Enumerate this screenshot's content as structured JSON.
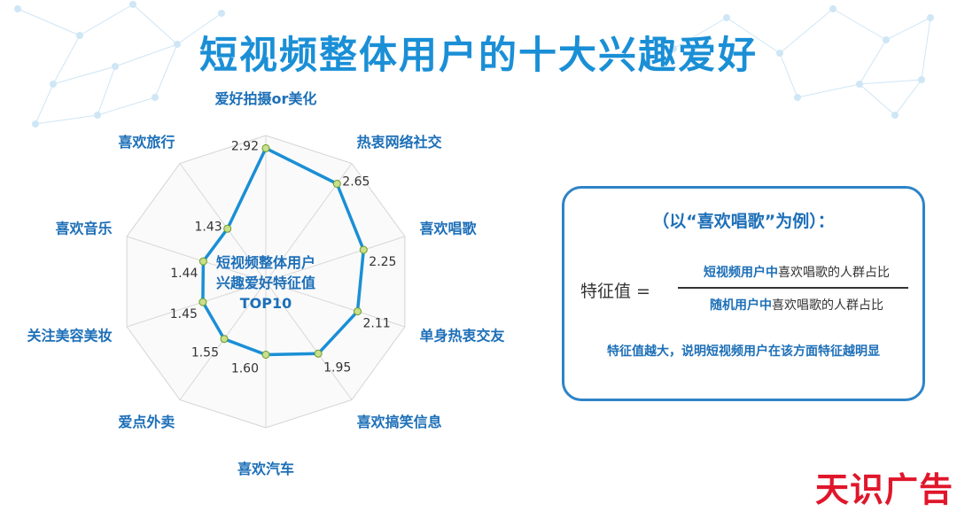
{
  "title": "短视频整体用户的十大兴趣爱好",
  "chart_data": {
    "type": "radar",
    "center_label": [
      "短视频整体用户",
      "兴趣爱好特征值",
      "TOP10"
    ],
    "categories": [
      "爱好拍摄or美化",
      "热衷网络社交",
      "喜欢唱歌",
      "单身热衷交友",
      "喜欢搞笑信息",
      "喜欢汽车",
      "爱点外卖",
      "关注美容美妆",
      "喜欢音乐",
      "喜欢旅行"
    ],
    "values": [
      2.92,
      2.65,
      2.25,
      2.11,
      1.95,
      1.6,
      1.55,
      1.45,
      1.44,
      1.43
    ],
    "value_labels": [
      "2.92",
      "2.65",
      "2.25",
      "2.11",
      "1.95",
      "1.60",
      "1.55",
      "1.45",
      "1.44",
      "1.43"
    ],
    "rmax": 3.2,
    "line_color": "#1a8fd6",
    "point_color": "#c9df8a"
  },
  "info_box": {
    "heading": "（以“喜欢唱歌”为例）：",
    "formula_left": "特征值 =",
    "numerator_highlight": "短视频用户中",
    "numerator_rest": "喜欢唱歌的人群占比",
    "denominator_highlight": "随机用户中",
    "denominator_rest": "喜欢唱歌的人群占比",
    "note": "特征值越大，说明短视频用户在该方面特征越明显"
  },
  "watermark": "天识广告"
}
